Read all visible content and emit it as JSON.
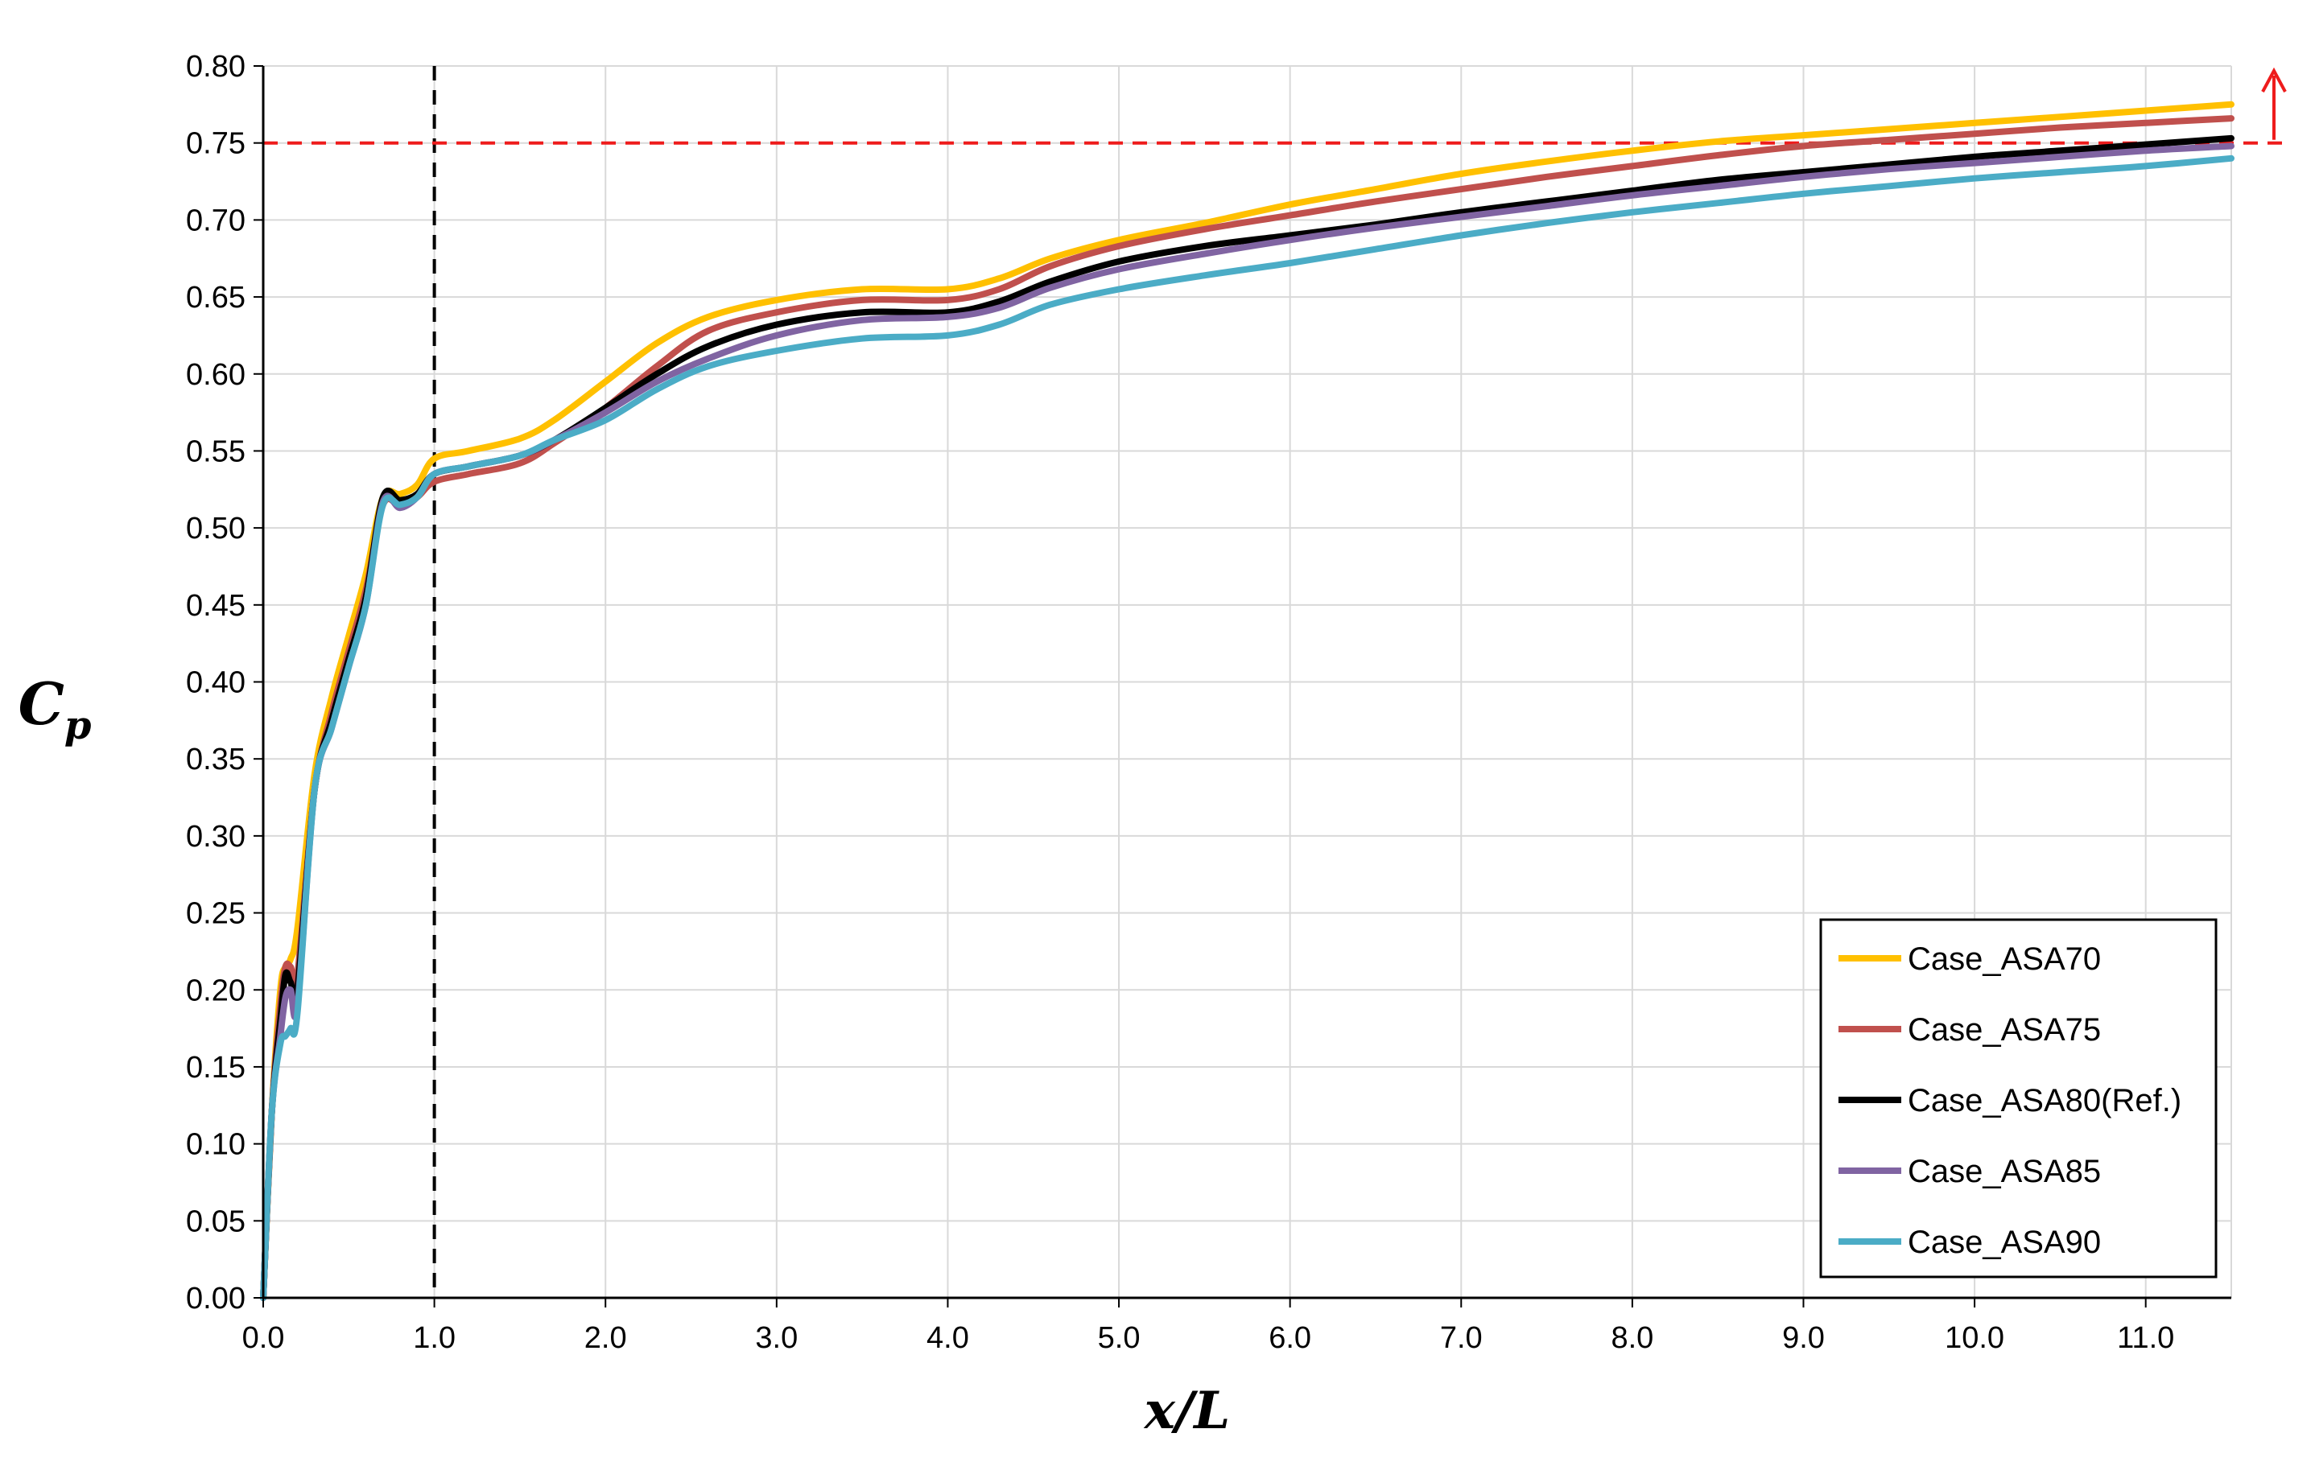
{
  "chart_data": {
    "type": "line",
    "title": "",
    "xlabel": "x/L",
    "ylabel_main": "C",
    "ylabel_sub": "p",
    "xlim": [
      0,
      11.5
    ],
    "ylim": [
      0,
      0.8
    ],
    "x_ticks": [
      "0.0",
      "1.0",
      "2.0",
      "3.0",
      "4.0",
      "5.0",
      "6.0",
      "7.0",
      "8.0",
      "9.0",
      "10.0",
      "11.0"
    ],
    "y_ticks": [
      "0.00",
      "0.05",
      "0.10",
      "0.15",
      "0.20",
      "0.25",
      "0.30",
      "0.35",
      "0.40",
      "0.45",
      "0.50",
      "0.55",
      "0.60",
      "0.65",
      "0.70",
      "0.75",
      "0.80"
    ],
    "grid": true,
    "legend_position": "bottom-right",
    "reference_lines": {
      "vertical_x": 1.0,
      "vertical_color": "#000000",
      "horizontal_y": 0.75,
      "horizontal_color": "#ee1c1c"
    },
    "series": [
      {
        "name": "Case_ASA70",
        "color": "#ffc000",
        "points": [
          [
            0,
            0
          ],
          [
            0.05,
            0.12
          ],
          [
            0.1,
            0.2
          ],
          [
            0.13,
            0.215
          ],
          [
            0.16,
            0.22
          ],
          [
            0.2,
            0.24
          ],
          [
            0.3,
            0.34
          ],
          [
            0.4,
            0.39
          ],
          [
            0.5,
            0.43
          ],
          [
            0.6,
            0.47
          ],
          [
            0.7,
            0.52
          ],
          [
            0.8,
            0.522
          ],
          [
            0.9,
            0.528
          ],
          [
            1.0,
            0.545
          ],
          [
            1.2,
            0.55
          ],
          [
            1.5,
            0.558
          ],
          [
            1.7,
            0.57
          ],
          [
            2.0,
            0.595
          ],
          [
            2.3,
            0.62
          ],
          [
            2.6,
            0.637
          ],
          [
            3.0,
            0.648
          ],
          [
            3.5,
            0.655
          ],
          [
            4.0,
            0.655
          ],
          [
            4.3,
            0.662
          ],
          [
            4.6,
            0.675
          ],
          [
            5.0,
            0.687
          ],
          [
            5.5,
            0.698
          ],
          [
            6.0,
            0.71
          ],
          [
            6.5,
            0.72
          ],
          [
            7.0,
            0.73
          ],
          [
            7.5,
            0.738
          ],
          [
            8.0,
            0.745
          ],
          [
            8.5,
            0.751
          ],
          [
            9.0,
            0.755
          ],
          [
            9.5,
            0.759
          ],
          [
            10.0,
            0.763
          ],
          [
            10.5,
            0.767
          ],
          [
            11.0,
            0.771
          ],
          [
            11.5,
            0.775
          ]
        ]
      },
      {
        "name": "Case_ASA75",
        "color": "#c0504d",
        "points": [
          [
            0,
            0
          ],
          [
            0.05,
            0.12
          ],
          [
            0.1,
            0.19
          ],
          [
            0.13,
            0.215
          ],
          [
            0.16,
            0.215
          ],
          [
            0.2,
            0.21
          ],
          [
            0.3,
            0.33
          ],
          [
            0.4,
            0.38
          ],
          [
            0.5,
            0.42
          ],
          [
            0.6,
            0.46
          ],
          [
            0.7,
            0.515
          ],
          [
            0.8,
            0.515
          ],
          [
            0.9,
            0.52
          ],
          [
            1.0,
            0.53
          ],
          [
            1.2,
            0.535
          ],
          [
            1.5,
            0.542
          ],
          [
            1.7,
            0.555
          ],
          [
            2.0,
            0.578
          ],
          [
            2.3,
            0.605
          ],
          [
            2.6,
            0.628
          ],
          [
            3.0,
            0.64
          ],
          [
            3.5,
            0.648
          ],
          [
            4.0,
            0.648
          ],
          [
            4.3,
            0.655
          ],
          [
            4.6,
            0.67
          ],
          [
            5.0,
            0.683
          ],
          [
            5.5,
            0.694
          ],
          [
            6.0,
            0.703
          ],
          [
            6.5,
            0.712
          ],
          [
            7.0,
            0.72
          ],
          [
            7.5,
            0.728
          ],
          [
            8.0,
            0.735
          ],
          [
            8.5,
            0.742
          ],
          [
            9.0,
            0.748
          ],
          [
            9.5,
            0.752
          ],
          [
            10.0,
            0.756
          ],
          [
            10.5,
            0.76
          ],
          [
            11.0,
            0.763
          ],
          [
            11.5,
            0.766
          ]
        ]
      },
      {
        "name": "Case_ASA80(Ref.)",
        "color": "#000000",
        "points": [
          [
            0,
            0
          ],
          [
            0.05,
            0.12
          ],
          [
            0.1,
            0.18
          ],
          [
            0.13,
            0.21
          ],
          [
            0.16,
            0.205
          ],
          [
            0.2,
            0.2
          ],
          [
            0.3,
            0.33
          ],
          [
            0.4,
            0.375
          ],
          [
            0.5,
            0.415
          ],
          [
            0.6,
            0.455
          ],
          [
            0.7,
            0.52
          ],
          [
            0.8,
            0.518
          ],
          [
            0.9,
            0.522
          ],
          [
            1.0,
            0.535
          ],
          [
            1.2,
            0.54
          ],
          [
            1.5,
            0.547
          ],
          [
            1.7,
            0.557
          ],
          [
            2.0,
            0.578
          ],
          [
            2.3,
            0.6
          ],
          [
            2.6,
            0.618
          ],
          [
            3.0,
            0.632
          ],
          [
            3.5,
            0.64
          ],
          [
            4.0,
            0.64
          ],
          [
            4.3,
            0.647
          ],
          [
            4.6,
            0.66
          ],
          [
            5.0,
            0.673
          ],
          [
            5.5,
            0.683
          ],
          [
            6.0,
            0.69
          ],
          [
            6.5,
            0.697
          ],
          [
            7.0,
            0.705
          ],
          [
            7.5,
            0.712
          ],
          [
            8.0,
            0.719
          ],
          [
            8.5,
            0.726
          ],
          [
            9.0,
            0.731
          ],
          [
            9.5,
            0.736
          ],
          [
            10.0,
            0.741
          ],
          [
            10.5,
            0.745
          ],
          [
            11.0,
            0.749
          ],
          [
            11.5,
            0.753
          ]
        ]
      },
      {
        "name": "Case_ASA85",
        "color": "#8064a2",
        "points": [
          [
            0,
            0
          ],
          [
            0.05,
            0.12
          ],
          [
            0.1,
            0.17
          ],
          [
            0.13,
            0.195
          ],
          [
            0.16,
            0.2
          ],
          [
            0.2,
            0.19
          ],
          [
            0.3,
            0.33
          ],
          [
            0.4,
            0.37
          ],
          [
            0.5,
            0.41
          ],
          [
            0.6,
            0.45
          ],
          [
            0.7,
            0.517
          ],
          [
            0.8,
            0.513
          ],
          [
            0.9,
            0.52
          ],
          [
            1.0,
            0.535
          ],
          [
            1.2,
            0.54
          ],
          [
            1.5,
            0.547
          ],
          [
            1.7,
            0.557
          ],
          [
            2.0,
            0.575
          ],
          [
            2.3,
            0.595
          ],
          [
            2.6,
            0.61
          ],
          [
            3.0,
            0.625
          ],
          [
            3.5,
            0.635
          ],
          [
            4.0,
            0.637
          ],
          [
            4.3,
            0.643
          ],
          [
            4.6,
            0.656
          ],
          [
            5.0,
            0.668
          ],
          [
            5.5,
            0.678
          ],
          [
            6.0,
            0.687
          ],
          [
            6.5,
            0.695
          ],
          [
            7.0,
            0.702
          ],
          [
            7.5,
            0.709
          ],
          [
            8.0,
            0.716
          ],
          [
            8.5,
            0.722
          ],
          [
            9.0,
            0.728
          ],
          [
            9.5,
            0.733
          ],
          [
            10.0,
            0.737
          ],
          [
            10.5,
            0.741
          ],
          [
            11.0,
            0.745
          ],
          [
            11.5,
            0.748
          ]
        ]
      },
      {
        "name": "Case_ASA90",
        "color": "#4bacc6",
        "points": [
          [
            0,
            0
          ],
          [
            0.05,
            0.12
          ],
          [
            0.1,
            0.165
          ],
          [
            0.13,
            0.17
          ],
          [
            0.16,
            0.175
          ],
          [
            0.2,
            0.185
          ],
          [
            0.3,
            0.33
          ],
          [
            0.4,
            0.37
          ],
          [
            0.5,
            0.41
          ],
          [
            0.6,
            0.45
          ],
          [
            0.7,
            0.515
          ],
          [
            0.8,
            0.515
          ],
          [
            0.9,
            0.52
          ],
          [
            1.0,
            0.535
          ],
          [
            1.2,
            0.54
          ],
          [
            1.5,
            0.547
          ],
          [
            1.7,
            0.557
          ],
          [
            2.0,
            0.57
          ],
          [
            2.3,
            0.59
          ],
          [
            2.6,
            0.605
          ],
          [
            3.0,
            0.615
          ],
          [
            3.5,
            0.623
          ],
          [
            4.0,
            0.625
          ],
          [
            4.3,
            0.632
          ],
          [
            4.6,
            0.645
          ],
          [
            5.0,
            0.655
          ],
          [
            5.5,
            0.664
          ],
          [
            6.0,
            0.672
          ],
          [
            6.5,
            0.681
          ],
          [
            7.0,
            0.69
          ],
          [
            7.5,
            0.698
          ],
          [
            8.0,
            0.705
          ],
          [
            8.5,
            0.711
          ],
          [
            9.0,
            0.717
          ],
          [
            9.5,
            0.722
          ],
          [
            10.0,
            0.727
          ],
          [
            10.5,
            0.731
          ],
          [
            11.0,
            0.735
          ],
          [
            11.5,
            0.74
          ]
        ]
      }
    ]
  }
}
